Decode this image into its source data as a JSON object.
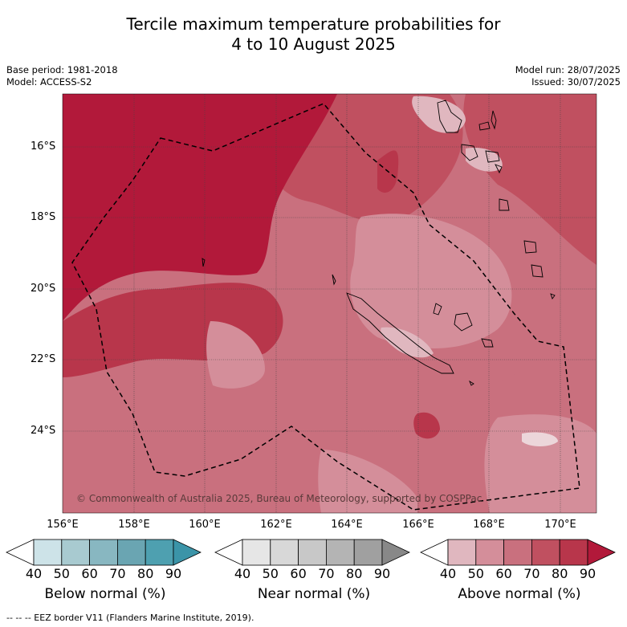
{
  "title_line1": "Tercile maximum temperature probabilities for",
  "title_line2": "4 to 10 August 2025",
  "meta_left": {
    "base_period": "Base period: 1981-2018",
    "model": "Model: ACCESS-S2"
  },
  "meta_right": {
    "model_run": "Model run: 28/07/2025",
    "issued": "Issued: 30/07/2025"
  },
  "lat_labels": [
    "16°S",
    "18°S",
    "20°S",
    "22°S",
    "24°S"
  ],
  "lon_labels": [
    "156°E",
    "158°E",
    "160°E",
    "162°E",
    "164°E",
    "166°E",
    "168°E",
    "170°E"
  ],
  "copyright": "© Commonwealth of Australia 2025, Bureau of Meteorology, supported by COSPPac",
  "colorbars": [
    {
      "title": "Below normal (%)",
      "ticks": [
        "40",
        "50",
        "60",
        "70",
        "80",
        "90"
      ],
      "colors": [
        "#ffffff",
        "#cde3e8",
        "#a8cad0",
        "#88b7c1",
        "#6aa5b2",
        "#4ea0b0",
        "#3b94a8"
      ]
    },
    {
      "title": "Near normal (%)",
      "ticks": [
        "40",
        "50",
        "60",
        "70",
        "80",
        "90"
      ],
      "colors": [
        "#ffffff",
        "#e6e6e6",
        "#d8d8d8",
        "#c8c8c8",
        "#b4b4b4",
        "#a0a0a0",
        "#888888"
      ]
    },
    {
      "title": "Above normal (%)",
      "ticks": [
        "40",
        "50",
        "60",
        "70",
        "80",
        "90"
      ],
      "colors": [
        "#ffffff",
        "#e0b7bf",
        "#d48e9a",
        "#c9707e",
        "#c05060",
        "#b8364b",
        "#b2193a"
      ]
    }
  ],
  "footer": "--  --  -- EEZ border V11 (Flanders Marine Institute, 2019)."
}
